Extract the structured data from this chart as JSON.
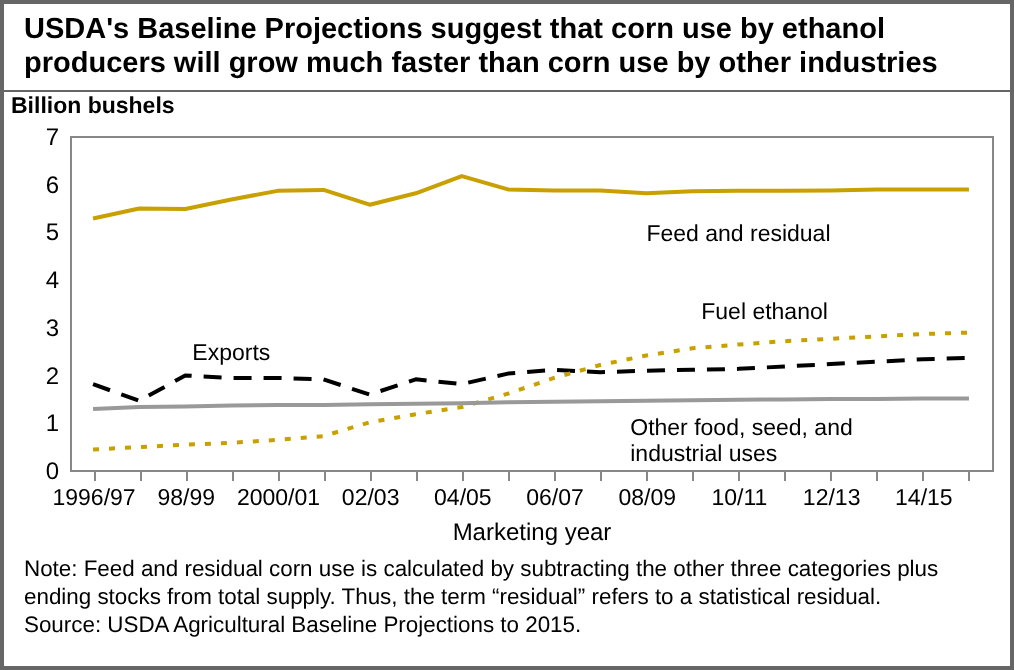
{
  "chart_data": {
    "type": "line",
    "title": "USDA's Baseline Projections suggest that corn use by ethanol producers will grow much faster than corn use by other industries",
    "xlabel": "Marketing year",
    "ylabel": "Billion bushels",
    "categories": [
      "1996/97",
      null,
      "98/99",
      null,
      "2000/01",
      null,
      "02/03",
      null,
      "04/05",
      null,
      "06/07",
      null,
      "08/09",
      null,
      "10/11",
      null,
      "12/13",
      null,
      "14/15",
      null
    ],
    "series": [
      {
        "name": "Feed and residual",
        "color": "#c8a000",
        "line_style": "solid",
        "values": [
          5.27,
          5.48,
          5.47,
          5.67,
          5.85,
          5.87,
          5.56,
          5.8,
          6.16,
          5.88,
          5.86,
          5.86,
          5.8,
          5.84,
          5.85,
          5.85,
          5.86,
          5.88,
          5.88,
          5.88
        ]
      },
      {
        "name": "Exports",
        "color": "#000000",
        "line_style": "dashed",
        "values": [
          1.8,
          1.45,
          1.98,
          1.93,
          1.93,
          1.9,
          1.58,
          1.9,
          1.8,
          2.02,
          2.1,
          2.05,
          2.08,
          2.1,
          2.12,
          2.17,
          2.22,
          2.27,
          2.32,
          2.35
        ]
      },
      {
        "name": "Fuel ethanol",
        "color": "#c8a000",
        "line_style": "dotted",
        "values": [
          0.43,
          0.48,
          0.53,
          0.57,
          0.63,
          0.71,
          1.0,
          1.17,
          1.32,
          1.6,
          1.93,
          2.2,
          2.4,
          2.55,
          2.63,
          2.7,
          2.75,
          2.8,
          2.85,
          2.88
        ]
      },
      {
        "name": "Other food, seed, and industrial uses",
        "color": "#999999",
        "line_style": "solid",
        "values": [
          1.28,
          1.32,
          1.33,
          1.35,
          1.36,
          1.36,
          1.38,
          1.39,
          1.4,
          1.42,
          1.43,
          1.44,
          1.45,
          1.46,
          1.47,
          1.48,
          1.49,
          1.49,
          1.5,
          1.5
        ]
      }
    ],
    "ylim": [
      0,
      7
    ],
    "yticks": [
      0,
      1,
      2,
      3,
      4,
      5,
      6,
      7
    ],
    "grid": false,
    "annotations": [
      "Note:  Feed and residual corn use is calculated by subtracting the other three categories plus ending stocks from total supply. Thus, the term “residual” refers to a statistical residual.",
      "Source: USDA Agricultural Baseline Projections to 2015."
    ]
  }
}
